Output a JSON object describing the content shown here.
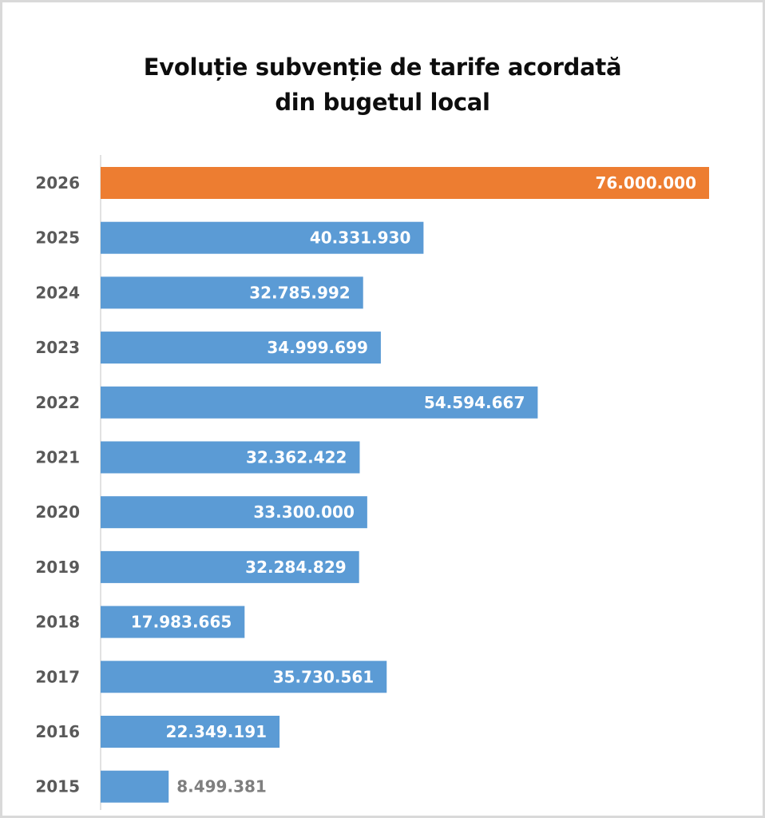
{
  "chart_data": {
    "type": "bar",
    "orientation": "horizontal",
    "title": "Evoluție subvenție de tarife acordată din bugetul local",
    "title_lines": [
      "Evoluție subvenție de tarife acordată",
      "din bugetul local"
    ],
    "xlabel": "",
    "ylabel": "",
    "xlim": [
      0,
      76000000
    ],
    "grid": false,
    "legend": "none",
    "categories": [
      "2026",
      "2025",
      "2024",
      "2023",
      "2022",
      "2021",
      "2020",
      "2019",
      "2018",
      "2017",
      "2016",
      "2015"
    ],
    "values": [
      76000000,
      40331930,
      32785992,
      34999699,
      54594667,
      32362422,
      33300000,
      32284829,
      17983665,
      35730561,
      22349191,
      8499381
    ],
    "data_labels": [
      "76.000.000",
      "40.331.930",
      "32.785.992",
      "34.999.699",
      "54.594.667",
      "32.362.422",
      "33.300.000",
      "32.284.829",
      "17.983.665",
      "35.730.561",
      "22.349.191",
      "8.499.381"
    ],
    "colors": [
      "#ed7d31",
      "#5b9bd5",
      "#5b9bd5",
      "#5b9bd5",
      "#5b9bd5",
      "#5b9bd5",
      "#5b9bd5",
      "#5b9bd5",
      "#5b9bd5",
      "#5b9bd5",
      "#5b9bd5",
      "#5b9bd5"
    ]
  }
}
